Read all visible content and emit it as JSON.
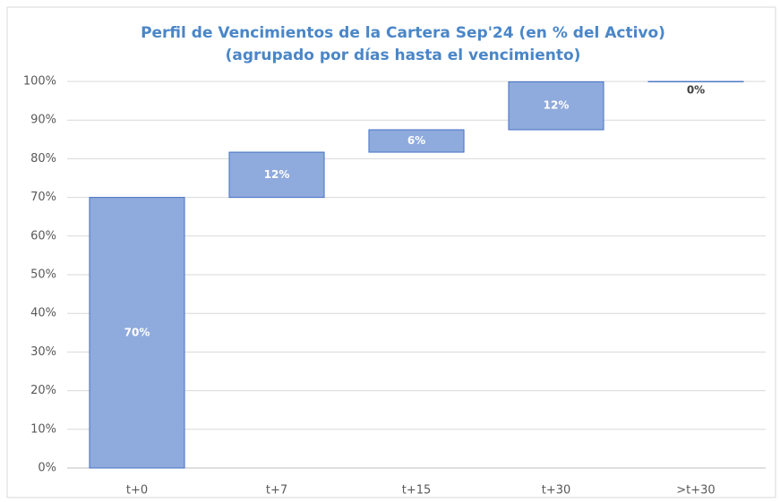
{
  "chart_data": {
    "type": "waterfall",
    "title": "Perfil de Vencimientos de la Cartera Sep'24 (en % del Activo)",
    "subtitle": "(agrupado por días hasta el vencimiento)",
    "categories": [
      "t+0",
      "t+7",
      "t+15",
      "t+30",
      ">t+30"
    ],
    "values": [
      70.0,
      11.7,
      5.8,
      12.4,
      0.1
    ],
    "value_labels": [
      "70%",
      "12%",
      "6%",
      "12%",
      "0%"
    ],
    "color": "#8faadc",
    "ylim": [
      0,
      100
    ],
    "yticks": [
      {
        "value": 0,
        "label": "0%"
      },
      {
        "value": 10,
        "label": "10%"
      },
      {
        "value": 20,
        "label": "20%"
      },
      {
        "value": 30,
        "label": "30%"
      },
      {
        "value": 40,
        "label": "40%"
      },
      {
        "value": 50,
        "label": "50%"
      },
      {
        "value": 60,
        "label": "60%"
      },
      {
        "value": 70,
        "label": "70%"
      },
      {
        "value": 80,
        "label": "80%"
      },
      {
        "value": 90,
        "label": "90%"
      },
      {
        "value": 100,
        "label": "100%"
      }
    ],
    "grid": true
  }
}
